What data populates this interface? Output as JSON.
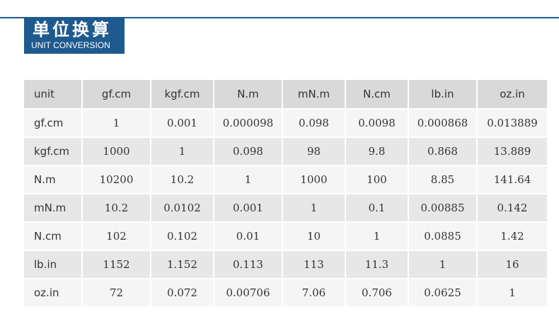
{
  "header": {
    "title_cn": "单位换算",
    "title_en": "UNIT CONVERSION"
  },
  "colors": {
    "accent": "#1e5a8e",
    "header_row": "#d9d9d9",
    "row_light": "#f5f5f5",
    "row_dark": "#e7e7e7"
  },
  "table": {
    "columns": [
      "unit",
      "gf.cm",
      "kgf.cm",
      "N.m",
      "mN.m",
      "N.cm",
      "lb.in",
      "oz.in"
    ],
    "rows": [
      [
        "gf.cm",
        "1",
        "0.001",
        "0.000098",
        "0.098",
        "0.0098",
        "0.000868",
        "0.013889"
      ],
      [
        "kgf.cm",
        "1000",
        "1",
        "0.098",
        "98",
        "9.8",
        "0.868",
        "13.889"
      ],
      [
        "N.m",
        "10200",
        "10.2",
        "1",
        "1000",
        "100",
        "8.85",
        "141.64"
      ],
      [
        "mN.m",
        "10.2",
        "0.0102",
        "0.001",
        "1",
        "0.1",
        "0.00885",
        "0.142"
      ],
      [
        "N.cm",
        "102",
        "0.102",
        "0.01",
        "10",
        "1",
        "0.0885",
        "1.42"
      ],
      [
        "lb.in",
        "1152",
        "1.152",
        "0.113",
        "113",
        "11.3",
        "1",
        "16"
      ],
      [
        "oz.in",
        "72",
        "0.072",
        "0.00706",
        "7.06",
        "0.706",
        "0.0625",
        "1"
      ]
    ]
  }
}
